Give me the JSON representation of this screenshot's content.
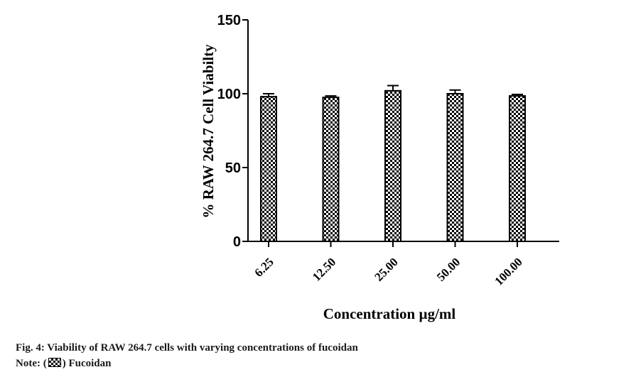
{
  "chart_data": {
    "type": "bar",
    "categories": [
      "6.25",
      "12.50",
      "25.00",
      "50.00",
      "100.00"
    ],
    "series": [
      {
        "name": "Fucoidan",
        "values": [
          98,
          97.5,
          102,
          100,
          98.5
        ],
        "errors": [
          2,
          1,
          3.5,
          2.5,
          1
        ]
      }
    ],
    "xlabel": "Concentration µg/ml",
    "ylabel": "% RAW 264.7 Cell Viabilty",
    "ylim": [
      0,
      150
    ],
    "yticks": [
      "0",
      "50",
      "100",
      "150"
    ],
    "legend": "none",
    "grid": false
  },
  "caption": {
    "figure": "Fig. 4: Viability of RAW 264.7 cells with varying concentrations of fucoidan",
    "note_prefix": "Note: (",
    "note_suffix": ") Fucoidan"
  },
  "colors": {
    "bar_pattern": "#000000",
    "axis": "#000000"
  }
}
